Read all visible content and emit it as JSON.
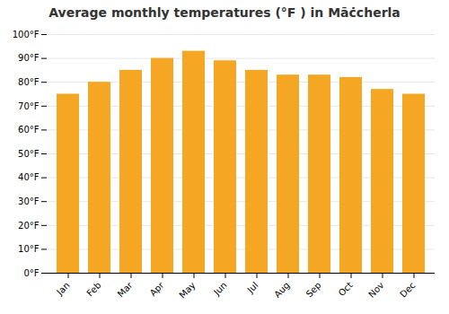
{
  "chart_data": {
    "type": "bar",
    "title": "Average monthly temperatures (°F ) in Māċcherla",
    "categories": [
      "Jan",
      "Feb",
      "Mar",
      "Apr",
      "May",
      "Jun",
      "Jul",
      "Aug",
      "Sep",
      "Oct",
      "Nov",
      "Dec"
    ],
    "values": [
      75,
      80,
      85,
      90,
      93,
      89,
      85,
      83,
      83,
      82,
      77,
      75
    ],
    "color": "#F5A623",
    "ylim": [
      0,
      100
    ],
    "yticks": [
      {
        "value": 0,
        "label": "0°F"
      },
      {
        "value": 10,
        "label": "10°F"
      },
      {
        "value": 20,
        "label": "20°F"
      },
      {
        "value": 30,
        "label": "30°F"
      },
      {
        "value": 40,
        "label": "40°F"
      },
      {
        "value": 50,
        "label": "50°F"
      },
      {
        "value": 60,
        "label": "60°F"
      },
      {
        "value": 70,
        "label": "70°F"
      },
      {
        "value": 80,
        "label": "80°F"
      },
      {
        "value": 90,
        "label": "90°F"
      },
      {
        "value": 100,
        "label": "100°F"
      }
    ],
    "grid": true
  }
}
